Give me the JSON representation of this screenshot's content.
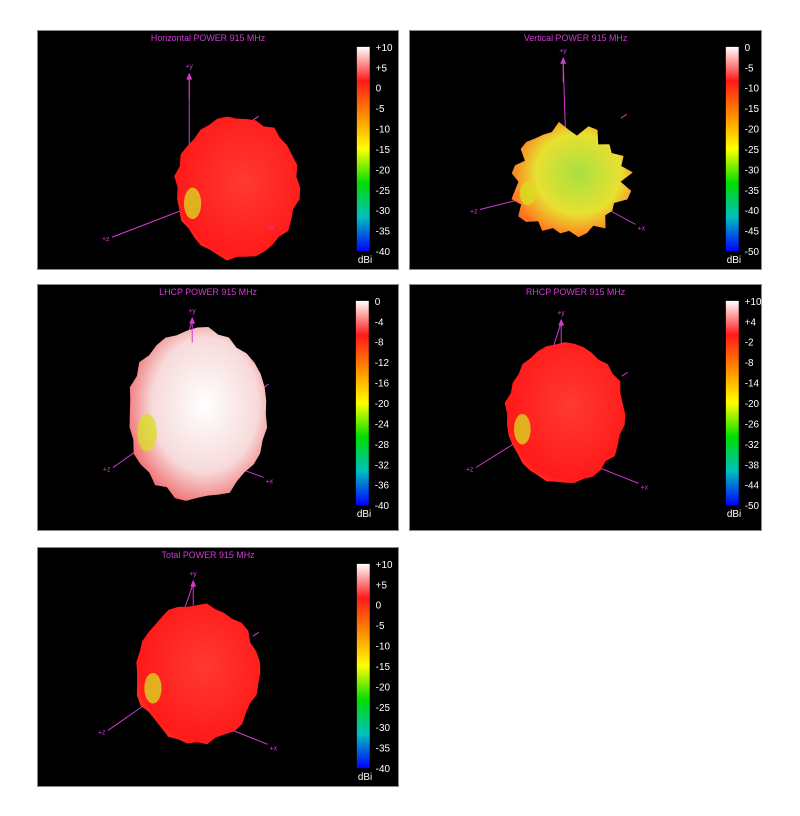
{
  "chart_data": [
    {
      "type": "heatmap",
      "title": "Horizontal POWER 915  MHz",
      "unit": "dBi",
      "colorbar_ticks": [
        "+10",
        "+5",
        "0",
        "-5",
        "-10",
        "-15",
        "-20",
        "-25",
        "-30",
        "-35",
        "-40"
      ],
      "range": [
        -40,
        10
      ],
      "axes": [
        "+y",
        "+x",
        "+z"
      ],
      "pattern": "Horizontal",
      "dominant_level": 0
    },
    {
      "type": "heatmap",
      "title": "Vertical POWER 915  MHz",
      "unit": "dBi",
      "colorbar_ticks": [
        "0",
        "-5",
        "-10",
        "-15",
        "-20",
        "-25",
        "-30",
        "-35",
        "-40",
        "-45",
        "-50"
      ],
      "range": [
        -50,
        0
      ],
      "axes": [
        "+y",
        "+x",
        "+z"
      ],
      "pattern": "Vertical",
      "dominant_level": -18
    },
    {
      "type": "heatmap",
      "title": "LHCP POWER 915  MHz",
      "unit": "dBi",
      "colorbar_ticks": [
        "0",
        "-4",
        "-8",
        "-12",
        "-16",
        "-20",
        "-24",
        "-28",
        "-32",
        "-36",
        "-40"
      ],
      "range": [
        -40,
        0
      ],
      "axes": [
        "+y",
        "+x",
        "+z"
      ],
      "pattern": "LHCP",
      "dominant_level": -2
    },
    {
      "type": "heatmap",
      "title": "RHCP POWER 915  MHz",
      "unit": "dBi",
      "colorbar_ticks": [
        "+10",
        "+4",
        "-2",
        "-8",
        "-14",
        "-20",
        "-26",
        "-32",
        "-38",
        "-44",
        "-50"
      ],
      "range": [
        -50,
        10
      ],
      "axes": [
        "+y",
        "+x",
        "+z"
      ],
      "pattern": "RHCP",
      "dominant_level": -3
    },
    {
      "type": "heatmap",
      "title": "Total POWER 915  MHz",
      "unit": "dBi",
      "colorbar_ticks": [
        "+10",
        "+5",
        "0",
        "-5",
        "-10",
        "-15",
        "-20",
        "-25",
        "-30",
        "-35",
        "-40"
      ],
      "range": [
        -40,
        10
      ],
      "axes": [
        "+y",
        "+x",
        "+z"
      ],
      "pattern": "Total",
      "dominant_level": 0
    }
  ],
  "colors": {
    "axis": "#d23bd2",
    "panel_bg": "#000000",
    "scale": [
      "#ffffff",
      "#ff1a1a",
      "#ff8c00",
      "#ffff00",
      "#00dd00",
      "#00bfbf",
      "#0000ff"
    ]
  }
}
